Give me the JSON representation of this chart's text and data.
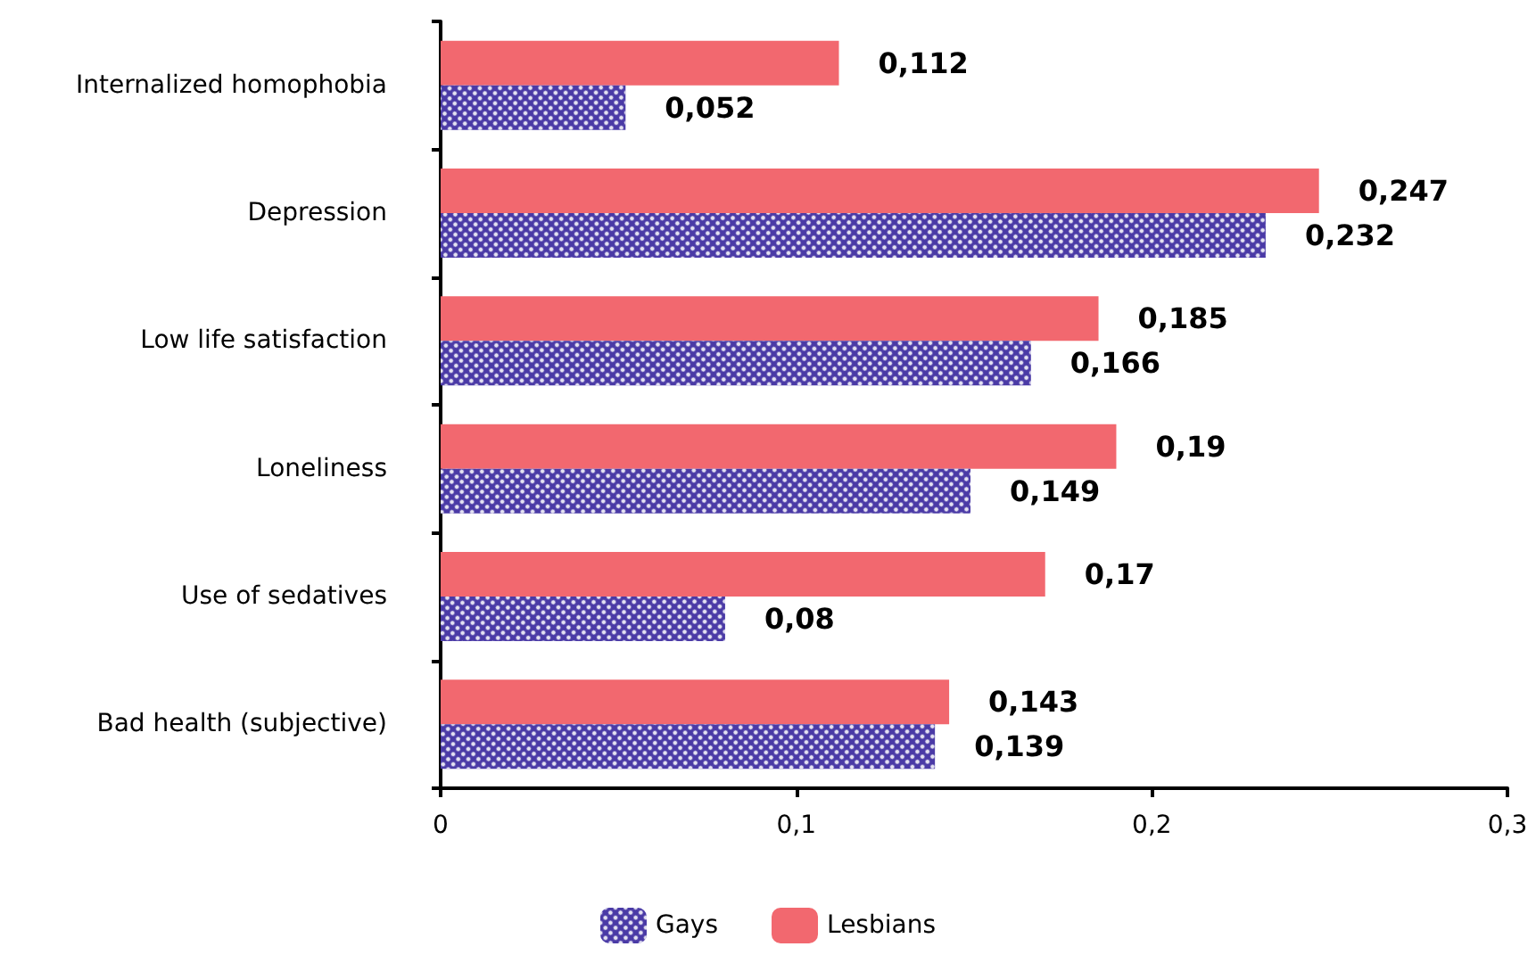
{
  "chart_data": {
    "type": "bar",
    "orientation": "horizontal",
    "legend": "bottom",
    "grid": false,
    "categories": [
      "Internalized homophobia",
      "Depression",
      "Low life satisfaction",
      "Loneliness",
      "Use of sedatives",
      "Bad health (subjective)"
    ],
    "series": [
      {
        "name": "Gays",
        "color": "#4a3aa6",
        "values": [
          0.052,
          0.232,
          0.166,
          0.149,
          0.08,
          0.139
        ],
        "value_labels": [
          "0,052",
          "0,232",
          "0,166",
          "0,149",
          "0,08",
          "0,139"
        ]
      },
      {
        "name": "Lesbians",
        "color": "#f2686f",
        "values": [
          0.112,
          0.247,
          0.185,
          0.19,
          0.17,
          0.143
        ],
        "value_labels": [
          "0,112",
          "0,247",
          "0,185",
          "0,19",
          "0,17",
          "0,143"
        ]
      }
    ],
    "xlim": [
      0,
      0.3
    ],
    "xticks": [
      {
        "value": 0,
        "label": "0"
      },
      {
        "value": 0.1,
        "label": "0,1"
      },
      {
        "value": 0.2,
        "label": "0,2"
      },
      {
        "value": 0.3,
        "label": "0,3"
      }
    ]
  }
}
